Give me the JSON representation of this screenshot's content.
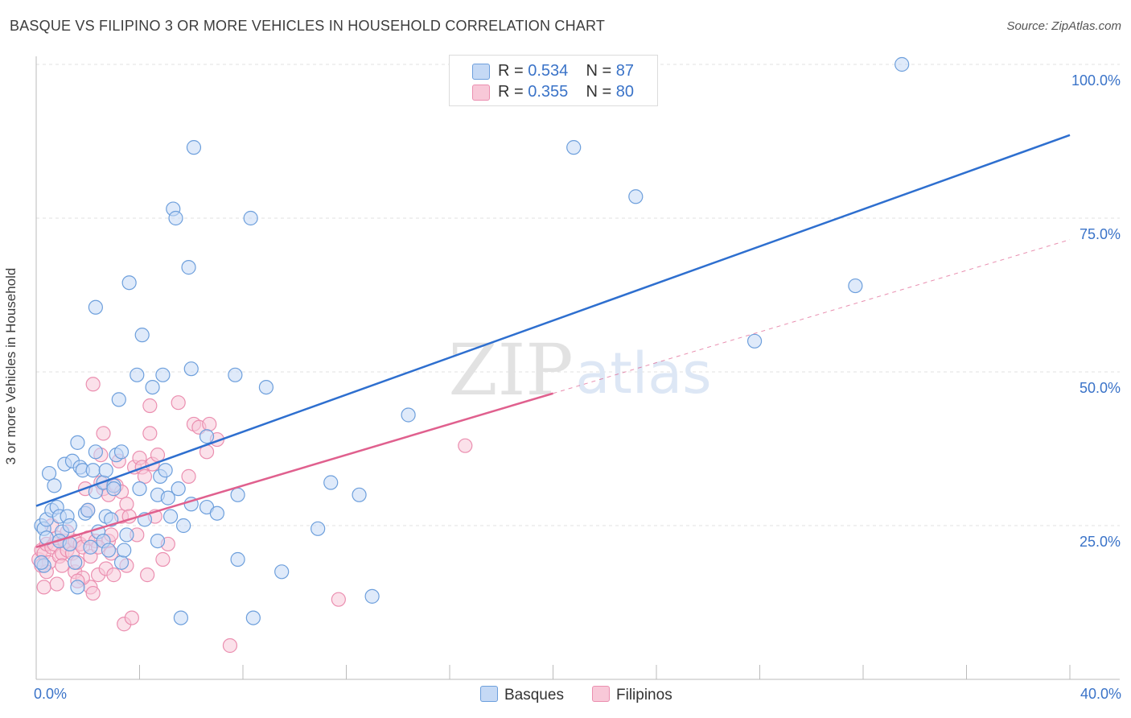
{
  "header": {
    "title": "BASQUE VS FILIPINO 3 OR MORE VEHICLES IN HOUSEHOLD CORRELATION CHART",
    "source": "Source: ZipAtlas.com"
  },
  "legend": {
    "basque": {
      "r_label": "R =",
      "r_value": "0.534",
      "n_label": "N =",
      "n_value": "87"
    },
    "filipino": {
      "r_label": "R =",
      "r_value": "0.355",
      "n_label": "N =",
      "n_value": "80"
    }
  },
  "watermark": {
    "zip": "ZIP",
    "atlas": "atlas"
  },
  "colors": {
    "basque_fill": "#c5d9f5",
    "basque_stroke": "#6d9fdc",
    "basque_line": "#2e6fcf",
    "filipino_fill": "#f8c8d8",
    "filipino_stroke": "#eb8fb0",
    "filipino_line": "#e0608e",
    "tick_text": "#3a73c8",
    "grid": "#e0e0e0"
  },
  "chart_data": {
    "type": "scatter",
    "title": "BASQUE VS FILIPINO 3 OR MORE VEHICLES IN HOUSEHOLD CORRELATION CHART",
    "xlabel": "",
    "ylabel": "3 or more Vehicles in Household",
    "xlim": [
      0,
      40
    ],
    "ylim": [
      0,
      102
    ],
    "x_tick_labels": [
      "0.0%",
      "40.0%"
    ],
    "y_ticks": [
      25,
      50,
      75,
      100
    ],
    "y_tick_labels": [
      "25.0%",
      "50.0%",
      "75.0%",
      "100.0%"
    ],
    "grid": true,
    "legend_position": "top-center",
    "series": [
      {
        "name": "Basques",
        "R": 0.534,
        "N": 87,
        "trend": {
          "x": [
            0,
            40
          ],
          "y": [
            28.2,
            88.5
          ],
          "style": "solid"
        },
        "points": [
          [
            0.2,
            25.0
          ],
          [
            0.3,
            24.5
          ],
          [
            0.3,
            18.5
          ],
          [
            0.4,
            26.0
          ],
          [
            0.5,
            33.5
          ],
          [
            0.6,
            27.5
          ],
          [
            0.7,
            31.5
          ],
          [
            0.8,
            28.0
          ],
          [
            0.9,
            26.5
          ],
          [
            1.0,
            24.0
          ],
          [
            1.1,
            35.0
          ],
          [
            1.2,
            26.5
          ],
          [
            1.3,
            25.0
          ],
          [
            1.4,
            35.5
          ],
          [
            1.5,
            19.0
          ],
          [
            1.6,
            15.0
          ],
          [
            1.6,
            38.5
          ],
          [
            1.7,
            34.5
          ],
          [
            1.8,
            34.0
          ],
          [
            1.9,
            27.0
          ],
          [
            2.0,
            27.5
          ],
          [
            2.2,
            34.0
          ],
          [
            2.3,
            30.5
          ],
          [
            2.3,
            37.0
          ],
          [
            2.3,
            60.5
          ],
          [
            2.4,
            24.0
          ],
          [
            2.6,
            32.0
          ],
          [
            2.6,
            22.5
          ],
          [
            2.7,
            26.5
          ],
          [
            2.7,
            34.0
          ],
          [
            2.8,
            21.0
          ],
          [
            3.0,
            31.5
          ],
          [
            3.0,
            31.0
          ],
          [
            3.1,
            36.5
          ],
          [
            3.2,
            45.5
          ],
          [
            3.3,
            19.0
          ],
          [
            3.3,
            37.0
          ],
          [
            3.5,
            23.5
          ],
          [
            3.6,
            64.5
          ],
          [
            3.9,
            49.5
          ],
          [
            4.0,
            31.0
          ],
          [
            4.1,
            56.0
          ],
          [
            4.2,
            26.0
          ],
          [
            4.5,
            47.5
          ],
          [
            4.7,
            30.0
          ],
          [
            4.7,
            22.5
          ],
          [
            4.8,
            33.0
          ],
          [
            4.9,
            49.5
          ],
          [
            5.0,
            34.0
          ],
          [
            5.1,
            29.5
          ],
          [
            5.2,
            26.5
          ],
          [
            5.3,
            76.5
          ],
          [
            5.4,
            75.0
          ],
          [
            5.5,
            31.0
          ],
          [
            5.6,
            10.0
          ],
          [
            5.7,
            25.0
          ],
          [
            5.9,
            67.0
          ],
          [
            6.0,
            28.5
          ],
          [
            6.0,
            50.5
          ],
          [
            6.1,
            86.5
          ],
          [
            6.6,
            39.5
          ],
          [
            6.6,
            28.0
          ],
          [
            7.0,
            27.0
          ],
          [
            7.7,
            49.5
          ],
          [
            7.8,
            30.0
          ],
          [
            7.8,
            19.5
          ],
          [
            8.3,
            75.0
          ],
          [
            8.4,
            10.0
          ],
          [
            8.9,
            47.5
          ],
          [
            9.5,
            17.5
          ],
          [
            10.9,
            24.5
          ],
          [
            11.4,
            32.0
          ],
          [
            12.5,
            30.0
          ],
          [
            13.0,
            13.5
          ],
          [
            14.4,
            43.0
          ],
          [
            20.8,
            86.5
          ],
          [
            23.2,
            78.5
          ],
          [
            27.8,
            55.0
          ],
          [
            31.7,
            64.0
          ],
          [
            33.5,
            100.0
          ],
          [
            0.2,
            19.0
          ],
          [
            0.4,
            23.0
          ],
          [
            0.9,
            22.5
          ],
          [
            1.3,
            22.0
          ],
          [
            2.1,
            21.5
          ],
          [
            2.9,
            26.0
          ],
          [
            3.4,
            21.0
          ]
        ]
      },
      {
        "name": "Filipinos",
        "R": 0.355,
        "N": 80,
        "trend": {
          "x": [
            0,
            20
          ],
          "y": [
            21.5,
            46.5
          ],
          "style": "solid",
          "extended": {
            "x": [
              20,
              40
            ],
            "y": [
              46.5,
              71.5
            ],
            "style": "dashed"
          }
        },
        "points": [
          [
            0.1,
            19.5
          ],
          [
            0.2,
            18.5
          ],
          [
            0.2,
            21.0
          ],
          [
            0.3,
            20.5
          ],
          [
            0.3,
            15.0
          ],
          [
            0.4,
            22.0
          ],
          [
            0.5,
            19.0
          ],
          [
            0.6,
            21.5
          ],
          [
            0.7,
            22.0
          ],
          [
            0.8,
            23.0
          ],
          [
            0.8,
            15.5
          ],
          [
            0.9,
            20.0
          ],
          [
            1.0,
            20.5
          ],
          [
            1.1,
            22.5
          ],
          [
            1.2,
            21.0
          ],
          [
            1.3,
            22.0
          ],
          [
            1.4,
            20.5
          ],
          [
            1.5,
            22.5
          ],
          [
            1.5,
            17.5
          ],
          [
            1.6,
            19.0
          ],
          [
            1.7,
            22.0
          ],
          [
            1.8,
            21.5
          ],
          [
            1.9,
            31.0
          ],
          [
            2.0,
            23.0
          ],
          [
            2.0,
            27.5
          ],
          [
            2.1,
            20.0
          ],
          [
            2.1,
            15.0
          ],
          [
            2.2,
            14.0
          ],
          [
            2.2,
            48.0
          ],
          [
            2.3,
            22.5
          ],
          [
            2.4,
            17.0
          ],
          [
            2.5,
            36.5
          ],
          [
            2.5,
            32.0
          ],
          [
            2.6,
            40.0
          ],
          [
            2.6,
            31.0
          ],
          [
            2.7,
            18.0
          ],
          [
            2.8,
            22.5
          ],
          [
            2.8,
            30.0
          ],
          [
            2.9,
            23.5
          ],
          [
            3.0,
            17.0
          ],
          [
            3.1,
            31.5
          ],
          [
            3.2,
            35.5
          ],
          [
            3.3,
            26.5
          ],
          [
            3.3,
            30.5
          ],
          [
            3.4,
            9.0
          ],
          [
            3.5,
            28.5
          ],
          [
            3.5,
            18.5
          ],
          [
            3.6,
            26.5
          ],
          [
            3.7,
            10.0
          ],
          [
            3.8,
            34.5
          ],
          [
            4.0,
            36.0
          ],
          [
            4.1,
            34.5
          ],
          [
            4.2,
            33.0
          ],
          [
            4.3,
            17.0
          ],
          [
            4.4,
            44.5
          ],
          [
            4.4,
            40.0
          ],
          [
            4.5,
            35.0
          ],
          [
            4.6,
            26.5
          ],
          [
            4.7,
            36.5
          ],
          [
            4.9,
            19.5
          ],
          [
            5.1,
            22.0
          ],
          [
            5.5,
            45.0
          ],
          [
            5.9,
            33.0
          ],
          [
            6.1,
            41.5
          ],
          [
            6.3,
            41.0
          ],
          [
            6.6,
            37.0
          ],
          [
            6.7,
            41.5
          ],
          [
            7.0,
            39.0
          ],
          [
            7.5,
            5.5
          ],
          [
            11.7,
            13.0
          ],
          [
            16.6,
            38.0
          ],
          [
            0.6,
            25.0
          ],
          [
            1.2,
            24.0
          ],
          [
            1.8,
            16.5
          ],
          [
            2.9,
            20.5
          ],
          [
            1.0,
            18.5
          ],
          [
            0.4,
            17.5
          ],
          [
            3.9,
            23.5
          ],
          [
            2.4,
            21.5
          ],
          [
            1.6,
            16.0
          ]
        ]
      }
    ]
  },
  "bottom_legend": {
    "basques": "Basques",
    "filipinos": "Filipinos"
  }
}
